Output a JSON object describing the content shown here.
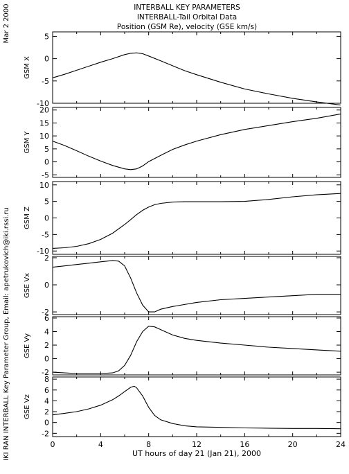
{
  "header": {
    "line1": "INTERBALL KEY PARAMETERS",
    "line2": "INTERBALL-Tail Orbital Data",
    "line3": "Position (GSM Re), velocity (GSE km/s)"
  },
  "side_labels": {
    "date": "Mar  2 2000",
    "credit": "IKI RAN INTERBALL Key Parameter Group, Email: apetrukovich@iki.rssi.ru"
  },
  "x_axis": {
    "label": "UT hours of day  21 (Jan 21), 2000",
    "range": [
      0,
      24
    ],
    "ticks": [
      0,
      4,
      8,
      12,
      16,
      20,
      24
    ]
  },
  "chart_data": [
    {
      "type": "line",
      "ylabel": "GSM X",
      "ylim": [
        -10,
        6
      ],
      "yticks": [
        -10,
        -5,
        0,
        5
      ],
      "series": [
        {
          "x": [
            0,
            1,
            2,
            3,
            4,
            5,
            6,
            6.5,
            7,
            7.5,
            8,
            9,
            10,
            11,
            12,
            14,
            16,
            18,
            20,
            22,
            24
          ],
          "y": [
            -4.3,
            -3.5,
            -2.6,
            -1.7,
            -0.8,
            0.0,
            0.9,
            1.2,
            1.3,
            1.1,
            0.6,
            -0.5,
            -1.6,
            -2.7,
            -3.6,
            -5.3,
            -6.8,
            -7.9,
            -8.9,
            -9.7,
            -10.4
          ]
        }
      ]
    },
    {
      "type": "line",
      "ylabel": "GSM Y",
      "ylim": [
        -6,
        21
      ],
      "yticks": [
        -5,
        0,
        5,
        10,
        15,
        20
      ],
      "series": [
        {
          "x": [
            0,
            1,
            2,
            3,
            4,
            5,
            6,
            6.5,
            7,
            7.5,
            8,
            9,
            10,
            11,
            12,
            14,
            16,
            18,
            20,
            22,
            24
          ],
          "y": [
            8.0,
            6.3,
            4.3,
            2.2,
            0.3,
            -1.4,
            -2.7,
            -3.0,
            -2.7,
            -1.6,
            0.1,
            2.5,
            4.8,
            6.5,
            8.0,
            10.5,
            12.5,
            14.0,
            15.5,
            16.8,
            18.5
          ]
        }
      ]
    },
    {
      "type": "line",
      "ylabel": "GSM Z",
      "ylim": [
        -11,
        11
      ],
      "yticks": [
        -10,
        -5,
        0,
        5,
        10
      ],
      "series": [
        {
          "x": [
            0,
            1,
            2,
            3,
            4,
            5,
            6,
            6.5,
            7,
            7.5,
            8,
            8.5,
            9,
            10,
            11,
            12,
            14,
            16,
            18,
            20,
            22,
            24
          ],
          "y": [
            -9.2,
            -9.0,
            -8.6,
            -7.8,
            -6.5,
            -4.6,
            -2.0,
            -0.5,
            1.0,
            2.3,
            3.3,
            4.0,
            4.4,
            4.8,
            4.9,
            4.9,
            4.9,
            5.0,
            5.6,
            6.4,
            7.0,
            7.4
          ]
        }
      ]
    },
    {
      "type": "line",
      "ylabel": "GSE Vx",
      "ylim": [
        -2.2,
        2.1
      ],
      "yticks": [
        -2,
        0,
        2
      ],
      "series": [
        {
          "x": [
            0,
            1,
            2,
            3,
            4,
            5,
            5.5,
            6,
            6.5,
            7,
            7.5,
            8,
            8.5,
            9,
            10,
            12,
            14,
            16,
            18,
            20,
            22,
            24
          ],
          "y": [
            1.3,
            1.4,
            1.5,
            1.6,
            1.7,
            1.8,
            1.75,
            1.4,
            0.5,
            -0.6,
            -1.5,
            -2.0,
            -2.0,
            -1.8,
            -1.6,
            -1.3,
            -1.1,
            -1.0,
            -0.9,
            -0.8,
            -0.7,
            -0.7
          ]
        }
      ]
    },
    {
      "type": "line",
      "ylabel": "GSE Vy",
      "ylim": [
        -2.4,
        6.2
      ],
      "yticks": [
        -2,
        0,
        2,
        4,
        6
      ],
      "series": [
        {
          "x": [
            0,
            1,
            2,
            3,
            4,
            5,
            5.5,
            6,
            6.5,
            7,
            7.5,
            8,
            8.5,
            9,
            10,
            11,
            12,
            14,
            16,
            18,
            20,
            22,
            24
          ],
          "y": [
            -2.0,
            -2.1,
            -2.2,
            -2.2,
            -2.2,
            -2.1,
            -1.8,
            -1.0,
            0.5,
            2.5,
            4.0,
            4.8,
            4.7,
            4.3,
            3.5,
            3.0,
            2.7,
            2.3,
            2.0,
            1.7,
            1.5,
            1.3,
            1.1
          ]
        }
      ]
    },
    {
      "type": "line",
      "ylabel": "GSE Vz",
      "ylim": [
        -2.6,
        8.4
      ],
      "yticks": [
        -2,
        0,
        2,
        4,
        6,
        8
      ],
      "series": [
        {
          "x": [
            0,
            1,
            2,
            3,
            4,
            5,
            5.5,
            6,
            6.5,
            6.8,
            7,
            7.5,
            8,
            8.5,
            9,
            10,
            11,
            12,
            14,
            16,
            18,
            20,
            22,
            24
          ],
          "y": [
            1.4,
            1.7,
            2.0,
            2.5,
            3.2,
            4.2,
            4.9,
            5.7,
            6.5,
            6.7,
            6.4,
            4.9,
            2.8,
            1.3,
            0.5,
            -0.2,
            -0.6,
            -0.8,
            -0.9,
            -1.0,
            -1.05,
            -1.1,
            -1.1,
            -1.15
          ]
        }
      ]
    }
  ]
}
